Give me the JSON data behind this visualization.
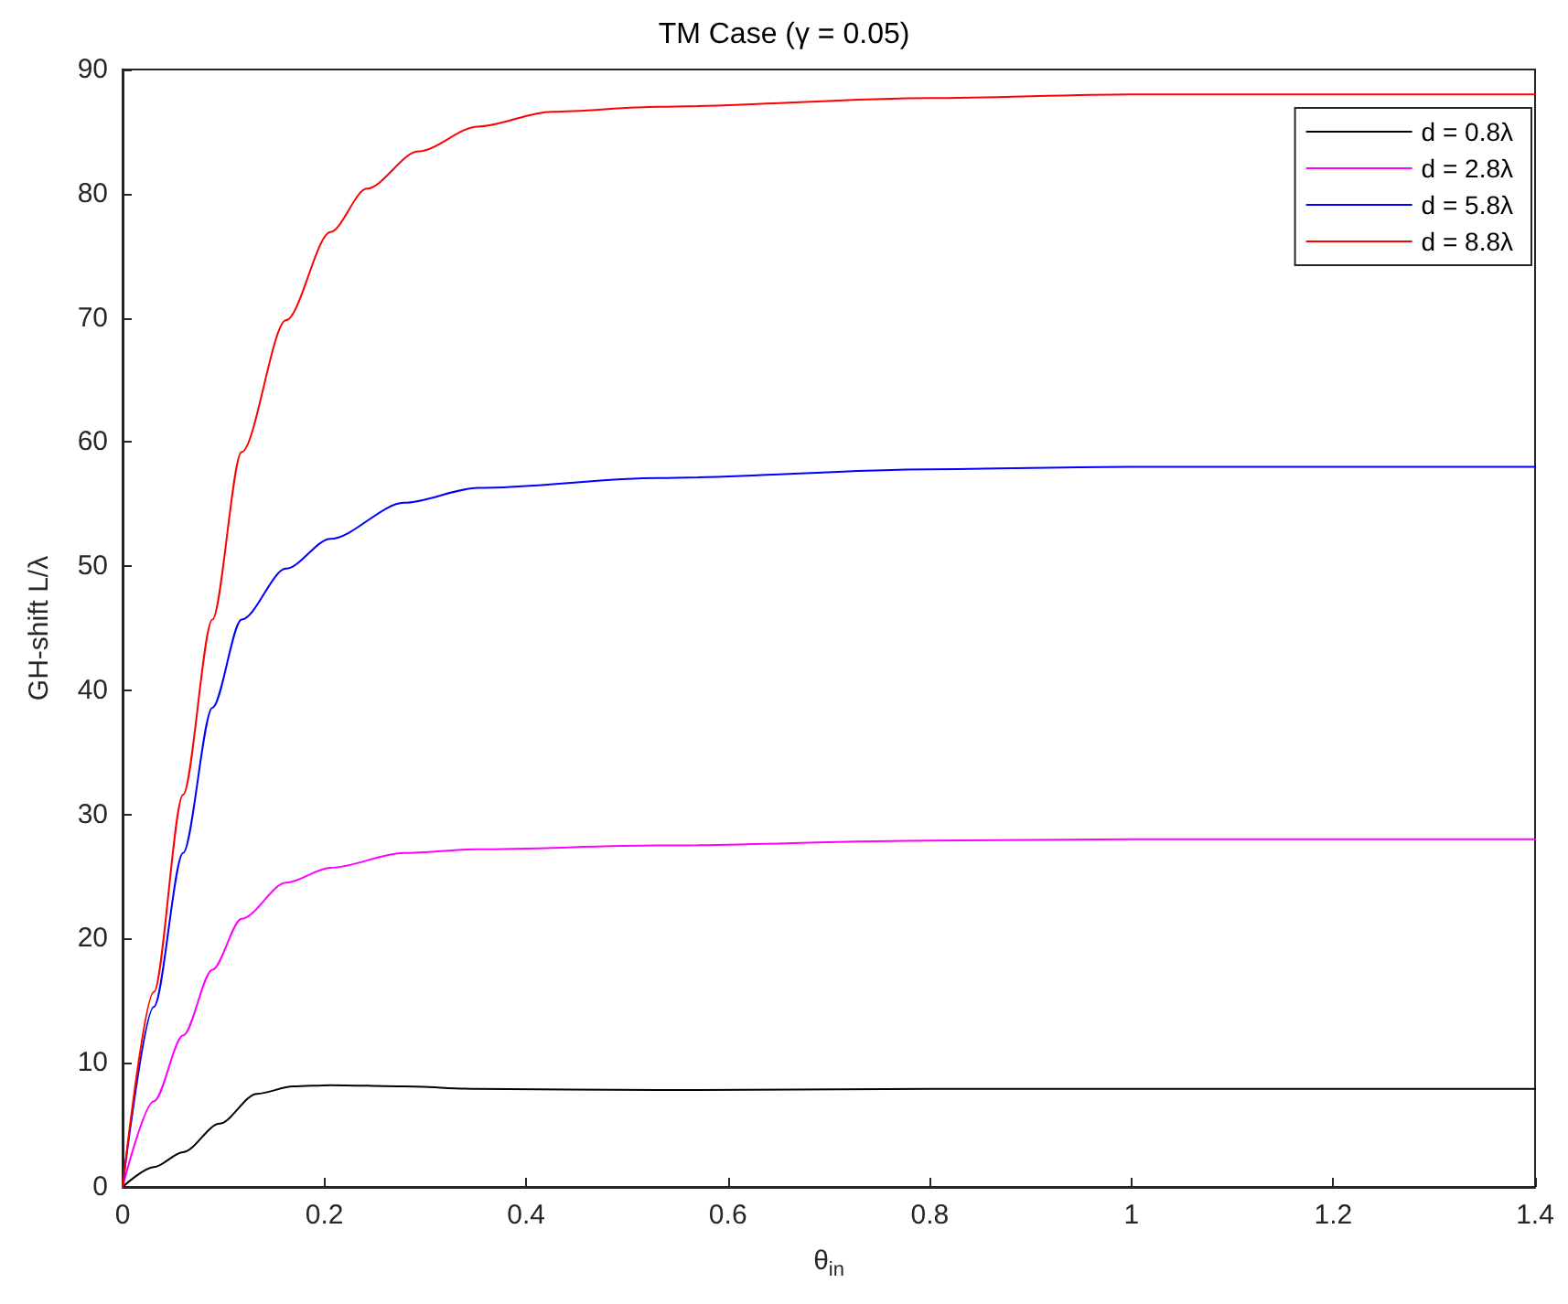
{
  "chart_data": {
    "type": "line",
    "title": "TM Case (γ = 0.05)",
    "xlabel": "θ$_{in}$",
    "ylabel": "GH-shift L/λ",
    "xlim": [
      0,
      1.4
    ],
    "xticks": [
      0,
      0.2,
      0.4,
      0.6,
      0.8,
      1,
      1.2,
      1.4
    ],
    "ylim": [
      0,
      90
    ],
    "yticks": [
      0,
      10,
      20,
      30,
      40,
      50,
      60,
      70,
      80,
      90
    ],
    "grid": false,
    "legend": "top right",
    "marker": "none",
    "line_style": "solid",
    "series": [
      {
        "name": "d = 0.8λ",
        "color": "#000000",
        "x": [
          0,
          0.031,
          0.06,
          0.096,
          0.133,
          0.169,
          0.206,
          0.279,
          0.352,
          0.531,
          0.8,
          1.0,
          1.2,
          1.4
        ],
        "values": [
          0,
          1.6,
          2.8,
          5.1,
          7.5,
          8.1,
          8.2,
          8.1,
          7.9,
          7.8,
          7.9,
          7.9,
          7.9,
          7.9
        ]
      },
      {
        "name": "d = 2.8λ",
        "color": "#ff00ff",
        "x": [
          0,
          0.031,
          0.06,
          0.089,
          0.118,
          0.162,
          0.206,
          0.279,
          0.352,
          0.531,
          0.8,
          1.0,
          1.2,
          1.4
        ],
        "values": [
          0,
          6.9,
          12.2,
          17.5,
          21.6,
          24.5,
          25.7,
          26.9,
          27.2,
          27.5,
          27.9,
          28,
          28,
          28
        ]
      },
      {
        "name": "d = 5.8λ",
        "color": "#0000ff",
        "x": [
          0,
          0.031,
          0.06,
          0.089,
          0.118,
          0.162,
          0.206,
          0.279,
          0.352,
          0.531,
          0.8,
          1.0,
          1.2,
          1.4
        ],
        "values": [
          0,
          14.5,
          26.9,
          38.6,
          45.7,
          49.8,
          52.2,
          55.1,
          56.3,
          57.1,
          57.8,
          58,
          58,
          58
        ]
      },
      {
        "name": "d = 8.8λ",
        "color": "#ff0000",
        "x": [
          0,
          0.031,
          0.06,
          0.089,
          0.118,
          0.162,
          0.206,
          0.242,
          0.293,
          0.352,
          0.425,
          0.531,
          0.8,
          1.0,
          1.2,
          1.4
        ],
        "values": [
          0,
          15.7,
          31.6,
          45.7,
          59.2,
          69.8,
          76.9,
          80.4,
          83.4,
          85.4,
          86.6,
          87.0,
          87.7,
          88,
          88,
          88
        ]
      }
    ]
  }
}
